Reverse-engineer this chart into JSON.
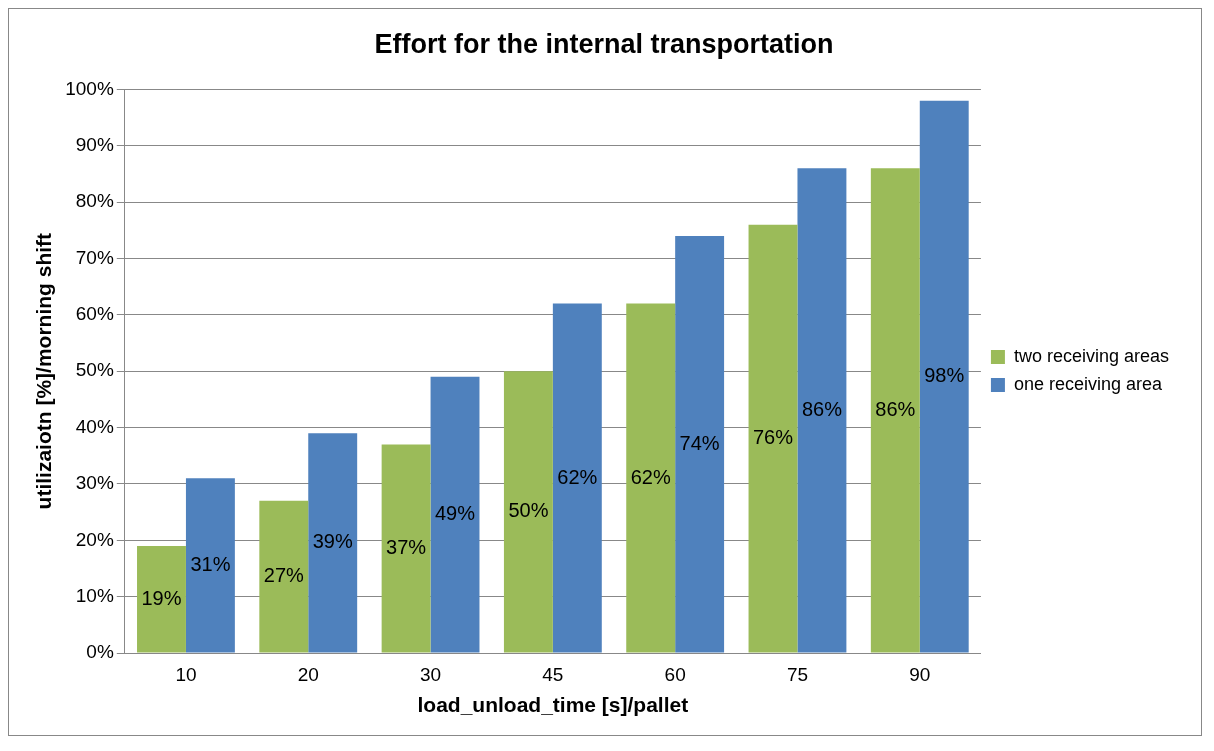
{
  "chart_data": {
    "type": "bar",
    "title": "Effort for the internal transportation",
    "xlabel": "load_unload_time [s]/pallet",
    "ylabel": "utilizaiotn [%]/morning shift",
    "categories": [
      "10",
      "20",
      "30",
      "45",
      "60",
      "75",
      "90"
    ],
    "series": [
      {
        "name": "two receiving areas",
        "color": "#9bbb59",
        "values": [
          19,
          27,
          37,
          50,
          62,
          76,
          86
        ],
        "value_labels": [
          "19%",
          "27%",
          "37%",
          "50%",
          "62%",
          "76%",
          "86%"
        ]
      },
      {
        "name": "one receiving area",
        "color": "#4f81bd",
        "values": [
          31,
          39,
          49,
          62,
          74,
          86,
          98
        ],
        "value_labels": [
          "31%",
          "39%",
          "49%",
          "62%",
          "74%",
          "86%",
          "98%"
        ]
      }
    ],
    "ylim": [
      0,
      100
    ],
    "yticks": [
      {
        "value": 0,
        "label": "0%"
      },
      {
        "value": 10,
        "label": "10%"
      },
      {
        "value": 20,
        "label": "20%"
      },
      {
        "value": 30,
        "label": "30%"
      },
      {
        "value": 40,
        "label": "40%"
      },
      {
        "value": 50,
        "label": "50%"
      },
      {
        "value": 60,
        "label": "60%"
      },
      {
        "value": 70,
        "label": "70%"
      },
      {
        "value": 80,
        "label": "80%"
      },
      {
        "value": 90,
        "label": "90%"
      },
      {
        "value": 100,
        "label": "100%"
      }
    ],
    "grid": "y",
    "legend": "right"
  }
}
